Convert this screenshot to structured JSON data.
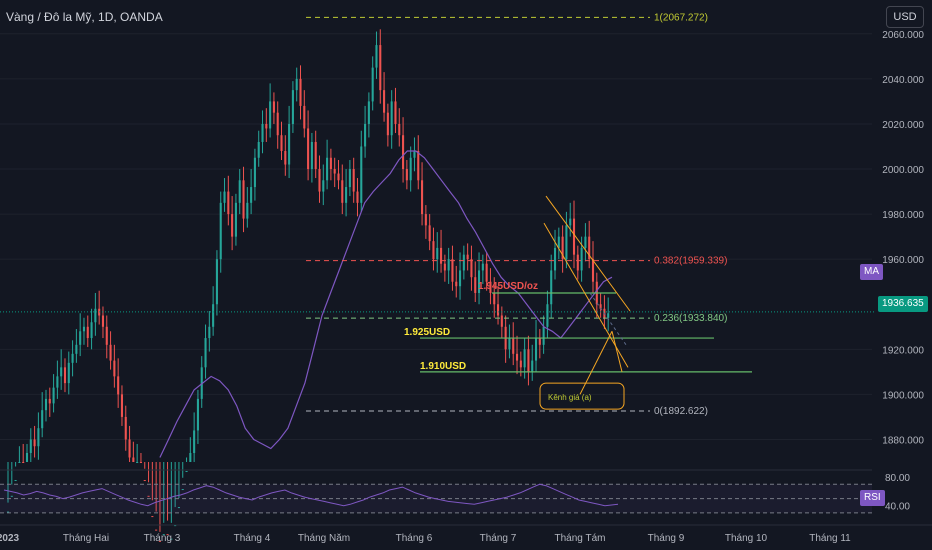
{
  "header": {
    "title": "Vàng / Đô la Mỹ, 1D, OANDA",
    "currency_button": "USD"
  },
  "price_axis": {
    "ticks": [
      "2060.000",
      "2040.000",
      "2020.000",
      "2000.000",
      "1980.000",
      "1960.000",
      "1920.000",
      "1900.000",
      "1880.000"
    ],
    "ma_label": "MA",
    "last_price": "1936.635"
  },
  "rsi_axis": {
    "ticks": [
      "80.00",
      "40.00"
    ],
    "label": "RSI"
  },
  "time_axis": {
    "labels": [
      "2023",
      "Tháng Hai",
      "Tháng 3",
      "Tháng 4",
      "Tháng Năm",
      "Tháng 6",
      "Tháng 7",
      "Tháng Tám",
      "Tháng 9",
      "Tháng 10",
      "Tháng 11"
    ]
  },
  "annotations": {
    "fib_1": "1(2067.272)",
    "fib_0382": "0.382(1959.339)",
    "fib_0236": "0.236(1933.840)",
    "fib_0": "0(1892.622)",
    "level_1945": "1.945USD/oz",
    "level_1925": "1.925USD",
    "level_1910": "1.910USD",
    "channel_label": "Kênh giá (a)"
  },
  "colors": {
    "background": "#131722",
    "up": "#26a69a",
    "down": "#ef5350",
    "ma": "#7e57c2",
    "fib_1": "#c0ca33",
    "fib_0382": "#ef5350",
    "fib_0236": "#81c784",
    "fib_0": "#b2b5be",
    "support": "#66bb6a",
    "channel": "#f5a623"
  },
  "chart_data": {
    "type": "candlestick",
    "symbol": "XAUUSD",
    "timeframe": "1D",
    "y_range": [
      1870,
      2075
    ],
    "y_ticks": [
      1880,
      1900,
      1920,
      1960,
      1980,
      2000,
      2020,
      2040,
      2060
    ],
    "last_price": 1936.635,
    "x_labels": [
      "2023",
      "Tháng Hai",
      "Tháng 3",
      "Tháng 4",
      "Tháng Năm",
      "Tháng 6",
      "Tháng 7",
      "Tháng Tám",
      "Tháng 9",
      "Tháng 10",
      "Tháng 11"
    ],
    "closes": [
      1848,
      1855,
      1862,
      1870,
      1866,
      1874,
      1880,
      1877,
      1885,
      1893,
      1898,
      1896,
      1903,
      1908,
      1912,
      1905,
      1914,
      1918,
      1922,
      1928,
      1930,
      1925,
      1932,
      1938,
      1935,
      1930,
      1922,
      1915,
      1908,
      1900,
      1890,
      1880,
      1872,
      1865,
      1870,
      1862,
      1855,
      1846,
      1840,
      1835,
      1832,
      1838,
      1830,
      1836,
      1842,
      1850,
      1858,
      1866,
      1874,
      1884,
      1898,
      1912,
      1925,
      1930,
      1940,
      1960,
      1985,
      1990,
      1980,
      1970,
      1985,
      1995,
      1978,
      1985,
      1992,
      2005,
      2012,
      2020,
      2018,
      2030,
      2025,
      2015,
      2008,
      2002,
      2020,
      2035,
      2040,
      2028,
      2018,
      2000,
      2012,
      2000,
      1990,
      1995,
      2005,
      2000,
      1998,
      1995,
      1985,
      1992,
      2000,
      1990,
      1985,
      2010,
      2020,
      2030,
      2045,
      2055,
      2035,
      2025,
      2015,
      2030,
      2020,
      2015,
      2000,
      1995,
      2005,
      2008,
      1995,
      1980,
      1975,
      1968,
      1960,
      1965,
      1958,
      1955,
      1960,
      1950,
      1948,
      1955,
      1962,
      1960,
      1952,
      1945,
      1955,
      1958,
      1950,
      1945,
      1940,
      1935,
      1930,
      1920,
      1925,
      1918,
      1915,
      1912,
      1920,
      1910,
      1915,
      1925,
      1922,
      1930,
      1940,
      1955,
      1965,
      1970,
      1960,
      1975,
      1978,
      1962,
      1955,
      1965,
      1970,
      1960,
      1950,
      1940,
      1938,
      1934,
      1936
    ],
    "ma_50": [
      1872,
      1880,
      1888,
      1895,
      1902,
      1905,
      1908,
      1906,
      1902,
      1895,
      1885,
      1880,
      1878,
      1876,
      1880,
      1885,
      1895,
      1905,
      1920,
      1935,
      1945,
      1955,
      1965,
      1975,
      1985,
      1990,
      1994,
      1998,
      2004,
      2008,
      2008,
      2005,
      2000,
      1995,
      1990,
      1985,
      1978,
      1972,
      1965,
      1958,
      1952,
      1948,
      1945,
      1940,
      1935,
      1930,
      1928,
      1925,
      1930,
      1935,
      1940,
      1945,
      1950,
      1952
    ],
    "rsi": {
      "range": [
        20,
        90
      ],
      "ticks": [
        80,
        40
      ],
      "upper": 70,
      "lower": 30,
      "values": [
        62,
        60,
        58,
        55,
        57,
        60,
        58,
        55,
        53,
        50,
        52,
        55,
        58,
        60,
        62,
        64,
        60,
        56,
        52,
        48,
        45,
        42,
        40,
        44,
        47,
        50,
        53,
        55,
        58,
        62,
        65,
        68,
        66,
        62,
        58,
        55,
        52,
        50,
        48,
        52,
        55,
        58,
        60,
        62,
        58,
        55,
        52,
        50,
        48,
        46,
        44,
        42,
        40,
        42,
        45,
        48,
        52,
        55,
        58,
        62,
        64,
        66,
        62,
        58,
        55,
        52,
        50,
        48,
        46,
        45,
        44,
        43,
        42,
        44,
        46,
        48,
        50,
        52,
        55,
        58,
        62,
        66,
        70,
        68,
        64,
        60,
        56,
        52,
        48,
        46,
        44,
        42,
        40,
        41,
        42
      ]
    }
  }
}
